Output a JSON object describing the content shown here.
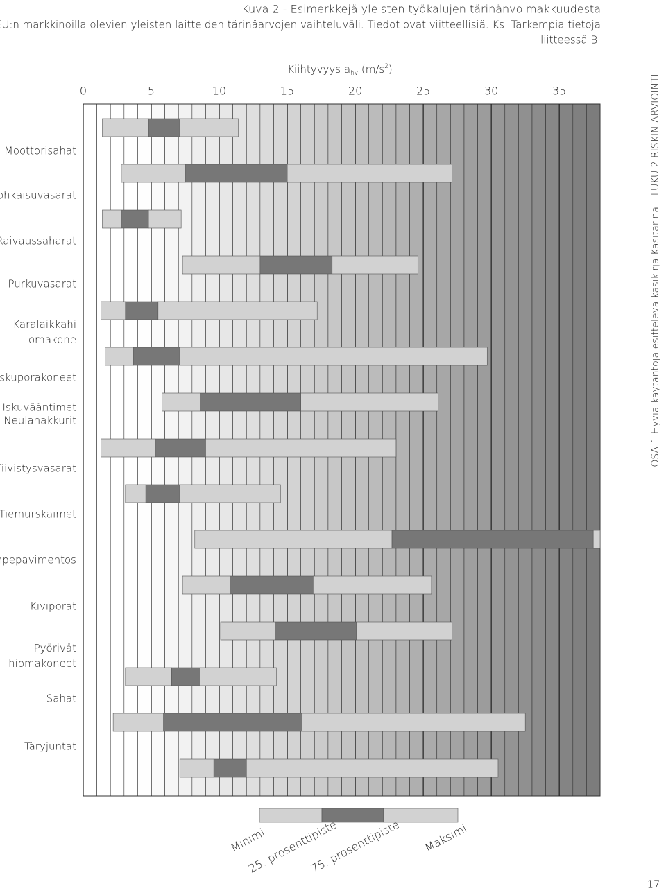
{
  "chart_data": {
    "type": "range_bar",
    "title": "Kuva 2 - Esimerkkejä yleisten työkalujen tärinänvoimakkuudesta",
    "subtitle_lines": [
      "EU:n markkinoilla olevien yleisten laitteiden tärinäarvojen vaihteluväli. Tiedot ovat viitteellisiä. Ks. Tarkempia tietoja",
      "liitteessä B."
    ],
    "x_label_parts": [
      "Kiihtyvyys a",
      "hv",
      " (m/s",
      "2",
      ")"
    ],
    "categories": [
      "Moottorisahat",
      "Lohkaisuvasarat",
      "Raivaussaharat",
      "Purkuvasarat",
      "Karalaikkahi omakone",
      "Iskuporakoneet",
      "Iskuvääntimet",
      "Neulahakkurit",
      "Tiivistysvasarat",
      "Tiemurskaimet",
      "Rompepavimentos",
      "Kiviporat",
      "Pyörivät hiomakoneet",
      "Sahat",
      "Täryjuntat"
    ],
    "series": [
      {
        "name": "Minimi",
        "color": "#d2d2d2",
        "values": [
          1.4,
          2.8,
          1.4,
          7.3,
          1.3,
          1.6,
          5.8,
          1.3,
          3.1,
          8.2,
          7.3,
          10.1,
          3.1,
          2.2,
          7.1
        ]
      },
      {
        "name": "25. prosenttipiste",
        "color": "#777777",
        "values": [
          4.8,
          7.5,
          2.8,
          13.0,
          3.1,
          3.7,
          8.6,
          5.3,
          4.6,
          22.7,
          10.8,
          14.1,
          6.5,
          5.9,
          9.6
        ]
      },
      {
        "name": "75. prosenttipiste",
        "color": "#d2d2d2",
        "values": [
          7.1,
          15.0,
          4.8,
          18.3,
          5.5,
          7.1,
          16.0,
          9.0,
          7.1,
          37.5,
          16.9,
          20.1,
          8.6,
          16.1,
          12.0
        ]
      },
      {
        "name": "Maksimi",
        "values": [
          11.4,
          27.1,
          7.2,
          24.6,
          17.2,
          29.7,
          26.1,
          23.0,
          14.5,
          38.0,
          25.6,
          27.1,
          14.2,
          32.5,
          30.5
        ]
      }
    ],
    "xlim": [
      0,
      38
    ],
    "xticks": [
      0,
      5,
      10,
      15,
      20,
      25,
      30,
      35
    ],
    "side_text": "OSA 1 Hyviä käytäntöjä esittelevä käsikirja Käsitärinä – LUKU 2 RISKIN ARVIOINTI",
    "page_number": "17"
  }
}
